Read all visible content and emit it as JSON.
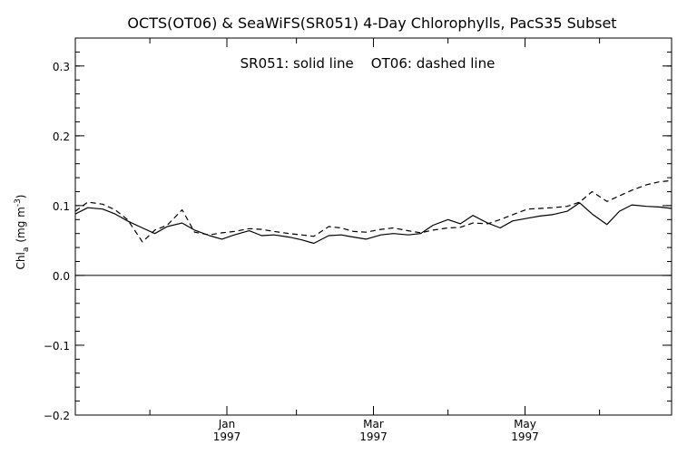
{
  "chart_data": {
    "type": "line",
    "title": "OCTS(OT06) & SeaWiFS(SR051) 4-Day Chlorophylls, PacS35 Subset",
    "annotation": "SR051: solid line    OT06: dashed line",
    "ylabel": "Chl_a (mg m^-3)",
    "ylabel_parts": {
      "main": "Chl",
      "sub": "a",
      "unit_pre": "(mg m",
      "sup": "-3",
      "unit_post": ")"
    },
    "xlabel": "",
    "ylim": [
      -0.2,
      0.34
    ],
    "xlim_days_from_nov1_1996": [
      0,
      240
    ],
    "y_ticks": [
      {
        "value": -0.2,
        "label": "−0.2"
      },
      {
        "value": -0.1,
        "label": "−0.1"
      },
      {
        "value": 0.0,
        "label": "0.0"
      },
      {
        "value": 0.1,
        "label": "0.1"
      },
      {
        "value": 0.2,
        "label": "0.2"
      },
      {
        "value": 0.3,
        "label": "0.3"
      }
    ],
    "x_major_ticks": [
      {
        "day": 61,
        "month": "Jan",
        "year": "1997"
      },
      {
        "day": 120,
        "month": "Mar",
        "year": "1997"
      },
      {
        "day": 181,
        "month": "May",
        "year": "1997"
      }
    ],
    "x_minor_tick_days": [
      0,
      30,
      89,
      150,
      211
    ],
    "zero_line": true,
    "grid": false,
    "series": [
      {
        "name": "SR051",
        "style": "solid",
        "x": [
          0,
          5,
          11,
          16,
          21,
          27,
          32,
          37,
          43,
          48,
          54,
          59,
          64,
          70,
          75,
          80,
          86,
          91,
          96,
          102,
          107,
          112,
          117,
          123,
          128,
          134,
          139,
          144,
          150,
          155,
          160,
          166,
          171,
          176,
          182,
          187,
          192,
          198,
          203,
          208,
          214,
          219,
          224,
          230,
          235,
          240
        ],
        "values": [
          0.088,
          0.097,
          0.095,
          0.088,
          0.078,
          0.068,
          0.06,
          0.07,
          0.075,
          0.065,
          0.057,
          0.052,
          0.058,
          0.064,
          0.057,
          0.058,
          0.055,
          0.051,
          0.046,
          0.057,
          0.058,
          0.055,
          0.052,
          0.058,
          0.06,
          0.058,
          0.06,
          0.072,
          0.08,
          0.074,
          0.086,
          0.075,
          0.068,
          0.078,
          0.082,
          0.085,
          0.087,
          0.092,
          0.104,
          0.088,
          0.073,
          0.092,
          0.101,
          0.099,
          0.098,
          0.096
        ]
      },
      {
        "name": "OT06",
        "style": "dashed",
        "x": [
          0,
          5,
          11,
          16,
          21,
          27,
          32,
          37,
          43,
          48,
          54,
          59,
          64,
          70,
          75,
          80,
          86,
          91,
          96,
          102,
          107,
          112,
          117,
          123,
          128,
          134,
          139,
          144,
          150,
          155,
          160,
          166,
          171,
          176,
          182,
          187,
          192,
          198,
          203,
          208,
          214,
          219,
          224,
          230,
          235,
          240
        ],
        "values": [
          0.092,
          0.105,
          0.102,
          0.094,
          0.08,
          0.048,
          0.065,
          0.072,
          0.094,
          0.062,
          0.058,
          0.061,
          0.063,
          0.067,
          0.066,
          0.063,
          0.06,
          0.058,
          0.056,
          0.07,
          0.068,
          0.063,
          0.062,
          0.066,
          0.068,
          0.064,
          0.061,
          0.065,
          0.068,
          0.069,
          0.075,
          0.074,
          0.08,
          0.087,
          0.095,
          0.096,
          0.097,
          0.099,
          0.105,
          0.12,
          0.106,
          0.114,
          0.122,
          0.13,
          0.134,
          0.136
        ]
      }
    ]
  }
}
